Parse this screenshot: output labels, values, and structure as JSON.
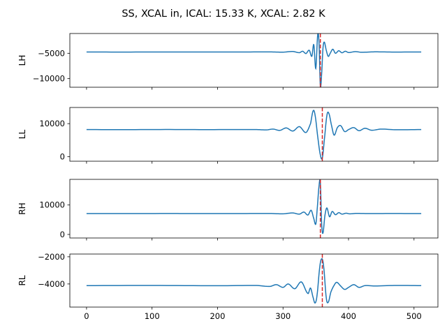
{
  "title": "SS, XCAL in, ICAL: 15.33 K, XCAL: 2.82 K",
  "colors": {
    "series": "#1f77b4",
    "marker": "#d62728",
    "axes": "#000000",
    "background": "#ffffff"
  },
  "chart_data": [
    {
      "type": "line",
      "ylabel": "LH",
      "xlim": [
        -25.5,
        536.5
      ],
      "ylim": [
        -11700,
        -1100
      ],
      "yticks": [
        -10000,
        -5000
      ],
      "ytick_labels": [
        "−10000",
        "−5000"
      ],
      "baseline": -4750,
      "marker_x": 357,
      "grid": false,
      "points": [
        [
          0,
          -4750
        ],
        [
          60,
          -4760
        ],
        [
          120,
          -4740
        ],
        [
          180,
          -4750
        ],
        [
          240,
          -4745
        ],
        [
          280,
          -4730
        ],
        [
          300,
          -4780
        ],
        [
          315,
          -4650
        ],
        [
          325,
          -4880
        ],
        [
          330,
          -4600
        ],
        [
          335,
          -5050
        ],
        [
          340,
          -4400
        ],
        [
          344,
          -5600
        ],
        [
          347,
          -3300
        ],
        [
          350,
          -8000
        ],
        [
          353,
          -1300
        ],
        [
          355,
          -3000
        ],
        [
          357,
          -11500
        ],
        [
          359,
          -9000
        ],
        [
          361,
          -4000
        ],
        [
          363,
          -2800
        ],
        [
          366,
          -4400
        ],
        [
          369,
          -5600
        ],
        [
          372,
          -5000
        ],
        [
          376,
          -4200
        ],
        [
          380,
          -5000
        ],
        [
          385,
          -4500
        ],
        [
          390,
          -4900
        ],
        [
          395,
          -4600
        ],
        [
          400,
          -4850
        ],
        [
          410,
          -4680
        ],
        [
          420,
          -4800
        ],
        [
          440,
          -4720
        ],
        [
          470,
          -4760
        ],
        [
          511,
          -4740
        ]
      ]
    },
    {
      "type": "line",
      "ylabel": "LL",
      "xlim": [
        -25.5,
        536.5
      ],
      "ylim": [
        -1400,
        14900
      ],
      "yticks": [
        0,
        10000
      ],
      "ytick_labels": [
        "0",
        "10000"
      ],
      "baseline": 8200,
      "marker_x": 360,
      "grid": false,
      "points": [
        [
          0,
          8200
        ],
        [
          60,
          8180
        ],
        [
          120,
          8220
        ],
        [
          180,
          8190
        ],
        [
          240,
          8210
        ],
        [
          260,
          8200
        ],
        [
          275,
          8100
        ],
        [
          285,
          8350
        ],
        [
          295,
          7950
        ],
        [
          305,
          8700
        ],
        [
          315,
          7750
        ],
        [
          325,
          9100
        ],
        [
          335,
          7300
        ],
        [
          342,
          10000
        ],
        [
          346,
          13900
        ],
        [
          349,
          12500
        ],
        [
          353,
          6000
        ],
        [
          357,
          500
        ],
        [
          360,
          -400
        ],
        [
          363,
          5000
        ],
        [
          367,
          12500
        ],
        [
          370,
          13100
        ],
        [
          374,
          9500
        ],
        [
          378,
          6500
        ],
        [
          383,
          8800
        ],
        [
          388,
          9400
        ],
        [
          394,
          7600
        ],
        [
          400,
          8200
        ],
        [
          408,
          8800
        ],
        [
          416,
          7850
        ],
        [
          425,
          8600
        ],
        [
          435,
          8000
        ],
        [
          450,
          8350
        ],
        [
          470,
          8150
        ],
        [
          511,
          8200
        ]
      ]
    },
    {
      "type": "line",
      "ylabel": "RH",
      "xlim": [
        -25.5,
        536.5
      ],
      "ylim": [
        -1200,
        18700
      ],
      "yticks": [
        0,
        10000
      ],
      "ytick_labels": [
        "0",
        "10000"
      ],
      "baseline": 7100,
      "marker_x": 357,
      "grid": false,
      "points": [
        [
          0,
          7100
        ],
        [
          60,
          7080
        ],
        [
          120,
          7110
        ],
        [
          180,
          7090
        ],
        [
          240,
          7100
        ],
        [
          280,
          7120
        ],
        [
          300,
          7000
        ],
        [
          315,
          7300
        ],
        [
          325,
          6900
        ],
        [
          332,
          7600
        ],
        [
          338,
          6600
        ],
        [
          343,
          8200
        ],
        [
          347,
          5400
        ],
        [
          350,
          3500
        ],
        [
          352,
          8200
        ],
        [
          355,
          16500
        ],
        [
          357,
          17500
        ],
        [
          359,
          3500
        ],
        [
          361,
          500
        ],
        [
          364,
          6500
        ],
        [
          367,
          9000
        ],
        [
          371,
          6000
        ],
        [
          375,
          7800
        ],
        [
          380,
          6700
        ],
        [
          385,
          7400
        ],
        [
          390,
          6900
        ],
        [
          396,
          7200
        ],
        [
          402,
          7000
        ],
        [
          412,
          7150
        ],
        [
          430,
          7080
        ],
        [
          460,
          7110
        ],
        [
          511,
          7100
        ]
      ]
    },
    {
      "type": "line",
      "ylabel": "RL",
      "xlim": [
        -25.5,
        536.5
      ],
      "ylim": [
        -5700,
        -1800
      ],
      "yticks": [
        -4000,
        -2000
      ],
      "ytick_labels": [
        "−4000",
        "−2000"
      ],
      "baseline": -4120,
      "marker_x": 360,
      "grid": false,
      "points": [
        [
          0,
          -4120
        ],
        [
          100,
          -4110
        ],
        [
          200,
          -4130
        ],
        [
          260,
          -4110
        ],
        [
          280,
          -4180
        ],
        [
          290,
          -4050
        ],
        [
          300,
          -4250
        ],
        [
          308,
          -4000
        ],
        [
          318,
          -4350
        ],
        [
          328,
          -3850
        ],
        [
          338,
          -4700
        ],
        [
          342,
          -4300
        ],
        [
          346,
          -5000
        ],
        [
          349,
          -5400
        ],
        [
          352,
          -4800
        ],
        [
          356,
          -2800
        ],
        [
          359,
          -2150
        ],
        [
          362,
          -2700
        ],
        [
          366,
          -5000
        ],
        [
          369,
          -5350
        ],
        [
          373,
          -4600
        ],
        [
          378,
          -4100
        ],
        [
          382,
          -3880
        ],
        [
          388,
          -4150
        ],
        [
          394,
          -4400
        ],
        [
          400,
          -4250
        ],
        [
          408,
          -4050
        ],
        [
          416,
          -4250
        ],
        [
          425,
          -4120
        ],
        [
          440,
          -4150
        ],
        [
          470,
          -4110
        ],
        [
          511,
          -4120
        ]
      ]
    }
  ],
  "xticks": [
    0,
    100,
    200,
    300,
    400,
    500
  ],
  "xtick_labels": [
    "0",
    "100",
    "200",
    "300",
    "400",
    "500"
  ]
}
